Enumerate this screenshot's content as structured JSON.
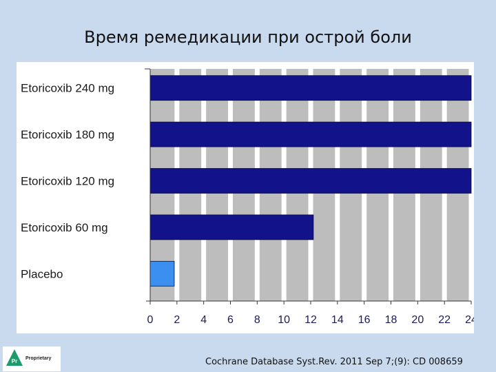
{
  "slide": {
    "title": "Время ремедикации при острой боли",
    "citation": "Cochrane Database Syst.Rev. 2011 Sep 7;(9): CD 008659",
    "logo_text": "Proprietary",
    "logo_badge": "Pr"
  },
  "chart_data": {
    "type": "bar",
    "orientation": "horizontal",
    "title": "",
    "xlabel": "",
    "ylabel": "",
    "categories": [
      "Etoricoxib 240 mg",
      "Etoricoxib 180 mg",
      "Etoricoxib 120 mg",
      "Etoricoxib 60 mg",
      "Placebo"
    ],
    "values": [
      24,
      24,
      24,
      12.2,
      1.8
    ],
    "bar_colors": [
      "#12128a",
      "#12128a",
      "#12128a",
      "#12128a",
      "#3a8ff0"
    ],
    "xlim": [
      0,
      24
    ],
    "xticks": [
      "0",
      "2",
      "4",
      "6",
      "8",
      "10",
      "12",
      "14",
      "16",
      "18",
      "20",
      "22",
      "24"
    ],
    "grid": true,
    "legend": "none"
  },
  "colors": {
    "background": "#c9d9ee",
    "plot_background": "#bdbdbd",
    "gridline": "#ffffff",
    "bar": "#12128a",
    "placebo_bar": "#3a8ff0"
  }
}
